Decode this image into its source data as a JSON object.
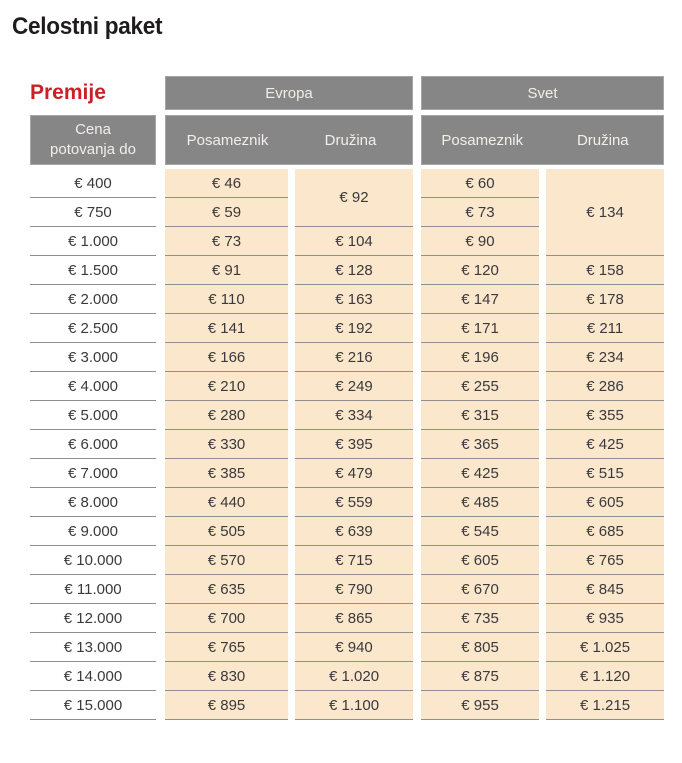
{
  "page_title": "Celostni paket",
  "premije_label": "Premije",
  "colors": {
    "header_bg": "#868686",
    "header_border": "#a5a5a5",
    "header_text": "#f2efe9",
    "cell_bg": "#fbe7cc",
    "divider": "#8f8f8f",
    "accent_red": "#c92127",
    "text_dark": "#3a393b",
    "title_color": "#1f1c1d"
  },
  "table": {
    "col_header_left": "Cena\npotovanja do",
    "groups": [
      {
        "label": "Evropa",
        "subcols": [
          "Posameznik",
          "Družina"
        ]
      },
      {
        "label": "Svet",
        "subcols": [
          "Posameznik",
          "Družina"
        ]
      }
    ],
    "rows": [
      {
        "limit": "€ 400",
        "cells": [
          {
            "v": "€ 46"
          },
          {
            "v": "€ 92",
            "rowspan": 2
          },
          {
            "v": "€ 60"
          },
          {
            "v": "€ 134",
            "rowspan": 3
          }
        ]
      },
      {
        "limit": "€ 750",
        "cells": [
          {
            "v": "€ 59"
          },
          null,
          {
            "v": "€ 73"
          },
          null
        ]
      },
      {
        "limit": "€ 1.000",
        "cells": [
          {
            "v": "€ 73"
          },
          {
            "v": "€ 104"
          },
          {
            "v": "€ 90"
          },
          null
        ]
      },
      {
        "limit": "€ 1.500",
        "cells": [
          {
            "v": "€ 91"
          },
          {
            "v": "€ 128"
          },
          {
            "v": "€ 120"
          },
          {
            "v": "€ 158"
          }
        ]
      },
      {
        "limit": "€ 2.000",
        "cells": [
          {
            "v": "€ 110"
          },
          {
            "v": "€ 163"
          },
          {
            "v": "€ 147"
          },
          {
            "v": "€ 178"
          }
        ]
      },
      {
        "limit": "€ 2.500",
        "cells": [
          {
            "v": "€ 141"
          },
          {
            "v": "€ 192"
          },
          {
            "v": "€ 171"
          },
          {
            "v": "€ 211"
          }
        ]
      },
      {
        "limit": "€ 3.000",
        "cells": [
          {
            "v": "€ 166"
          },
          {
            "v": "€ 216"
          },
          {
            "v": "€ 196"
          },
          {
            "v": "€ 234"
          }
        ]
      },
      {
        "limit": "€ 4.000",
        "cells": [
          {
            "v": "€ 210"
          },
          {
            "v": "€ 249"
          },
          {
            "v": "€ 255"
          },
          {
            "v": "€ 286"
          }
        ]
      },
      {
        "limit": "€ 5.000",
        "cells": [
          {
            "v": "€ 280"
          },
          {
            "v": "€ 334"
          },
          {
            "v": "€ 315"
          },
          {
            "v": "€ 355"
          }
        ]
      },
      {
        "limit": "€ 6.000",
        "cells": [
          {
            "v": "€ 330"
          },
          {
            "v": "€ 395"
          },
          {
            "v": "€ 365"
          },
          {
            "v": "€ 425"
          }
        ]
      },
      {
        "limit": "€ 7.000",
        "cells": [
          {
            "v": "€ 385"
          },
          {
            "v": "€ 479"
          },
          {
            "v": "€ 425"
          },
          {
            "v": "€ 515"
          }
        ]
      },
      {
        "limit": "€ 8.000",
        "cells": [
          {
            "v": "€ 440"
          },
          {
            "v": "€ 559"
          },
          {
            "v": "€ 485"
          },
          {
            "v": "€ 605"
          }
        ]
      },
      {
        "limit": "€ 9.000",
        "cells": [
          {
            "v": "€ 505"
          },
          {
            "v": "€ 639"
          },
          {
            "v": "€ 545"
          },
          {
            "v": "€ 685"
          }
        ]
      },
      {
        "limit": "€ 10.000",
        "cells": [
          {
            "v": "€ 570"
          },
          {
            "v": "€ 715"
          },
          {
            "v": "€ 605"
          },
          {
            "v": "€ 765"
          }
        ]
      },
      {
        "limit": "€ 11.000",
        "cells": [
          {
            "v": "€ 635"
          },
          {
            "v": "€ 790"
          },
          {
            "v": "€ 670"
          },
          {
            "v": "€ 845"
          }
        ]
      },
      {
        "limit": "€ 12.000",
        "cells": [
          {
            "v": "€ 700"
          },
          {
            "v": "€ 865"
          },
          {
            "v": "€ 735"
          },
          {
            "v": "€ 935"
          }
        ]
      },
      {
        "limit": "€ 13.000",
        "cells": [
          {
            "v": "€ 765"
          },
          {
            "v": "€ 940"
          },
          {
            "v": "€ 805"
          },
          {
            "v": "€ 1.025"
          }
        ]
      },
      {
        "limit": "€ 14.000",
        "cells": [
          {
            "v": "€ 830"
          },
          {
            "v": "€ 1.020"
          },
          {
            "v": "€ 875"
          },
          {
            "v": "€ 1.120"
          }
        ]
      },
      {
        "limit": "€ 15.000",
        "cells": [
          {
            "v": "€ 895"
          },
          {
            "v": "€ 1.100"
          },
          {
            "v": "€ 955"
          },
          {
            "v": "€ 1.215"
          }
        ]
      }
    ]
  }
}
